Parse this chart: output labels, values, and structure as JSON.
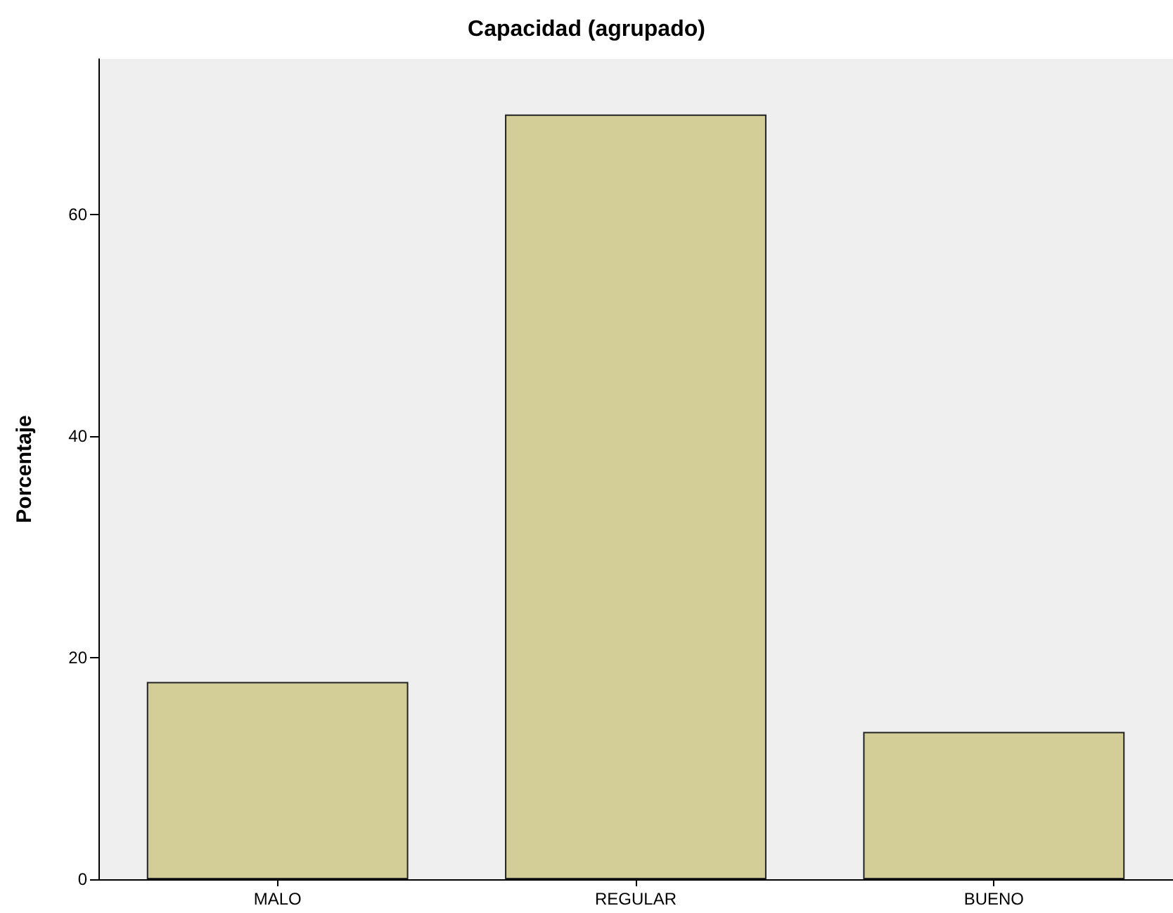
{
  "chart_data": {
    "type": "bar",
    "title": "Capacidad (agrupado)",
    "ylabel": "Porcentaje",
    "categories": [
      "MALO",
      "REGULAR",
      "BUENO"
    ],
    "values": [
      17.8,
      69.0,
      13.3
    ],
    "color": "#d3ce97",
    "ylim": [
      0,
      74
    ],
    "yticks": [
      0,
      20,
      40,
      60
    ],
    "grid": false
  }
}
